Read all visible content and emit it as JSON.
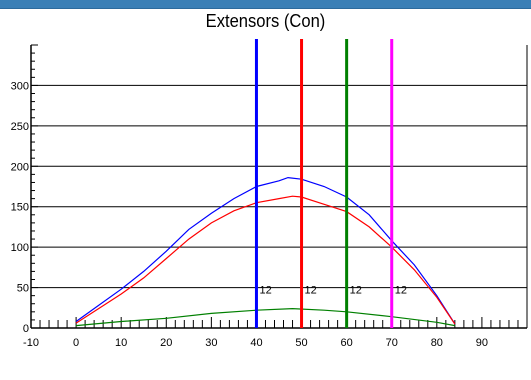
{
  "window": {
    "accent_color": "#3a7fb6"
  },
  "chart_data": {
    "type": "line",
    "title": "Extensors (Con)",
    "xlabel": "",
    "ylabel": "",
    "xlim": [
      -10,
      100
    ],
    "ylim": [
      0,
      350
    ],
    "x_ticks": [
      -10,
      0,
      10,
      20,
      30,
      40,
      50,
      60,
      70,
      80,
      90
    ],
    "y_ticks": [
      0,
      50,
      100,
      150,
      200,
      250,
      300
    ],
    "grid": "horizontal",
    "series": [
      {
        "color": "#0000ff",
        "points": [
          [
            0,
            8
          ],
          [
            5,
            28
          ],
          [
            10,
            48
          ],
          [
            15,
            70
          ],
          [
            20,
            95
          ],
          [
            25,
            122
          ],
          [
            30,
            142
          ],
          [
            35,
            160
          ],
          [
            40,
            175
          ],
          [
            45,
            182
          ],
          [
            47,
            186
          ],
          [
            50,
            184
          ],
          [
            55,
            175
          ],
          [
            60,
            162
          ],
          [
            65,
            140
          ],
          [
            70,
            108
          ],
          [
            75,
            78
          ],
          [
            80,
            40
          ],
          [
            84,
            5
          ]
        ]
      },
      {
        "color": "#ff0000",
        "points": [
          [
            0,
            6
          ],
          [
            5,
            24
          ],
          [
            10,
            42
          ],
          [
            15,
            62
          ],
          [
            20,
            86
          ],
          [
            25,
            110
          ],
          [
            30,
            130
          ],
          [
            35,
            145
          ],
          [
            40,
            155
          ],
          [
            45,
            160
          ],
          [
            48,
            163
          ],
          [
            50,
            162
          ],
          [
            55,
            153
          ],
          [
            60,
            144
          ],
          [
            65,
            125
          ],
          [
            70,
            100
          ],
          [
            75,
            72
          ],
          [
            80,
            38
          ],
          [
            84,
            5
          ]
        ]
      },
      {
        "color": "#008000",
        "points": [
          [
            0,
            3
          ],
          [
            10,
            8
          ],
          [
            20,
            12
          ],
          [
            30,
            18
          ],
          [
            40,
            22
          ],
          [
            48,
            24
          ],
          [
            55,
            22
          ],
          [
            60,
            20
          ],
          [
            70,
            14
          ],
          [
            80,
            7
          ],
          [
            84,
            3
          ]
        ]
      }
    ],
    "markers": [
      {
        "x": 40,
        "color": "#0000ff",
        "label": "12"
      },
      {
        "x": 50,
        "color": "#ff0000",
        "label": "12"
      },
      {
        "x": 60,
        "color": "#008000",
        "label": "12"
      },
      {
        "x": 70,
        "color": "#ff00ff",
        "label": "12"
      }
    ],
    "marker_label_y": 40
  }
}
